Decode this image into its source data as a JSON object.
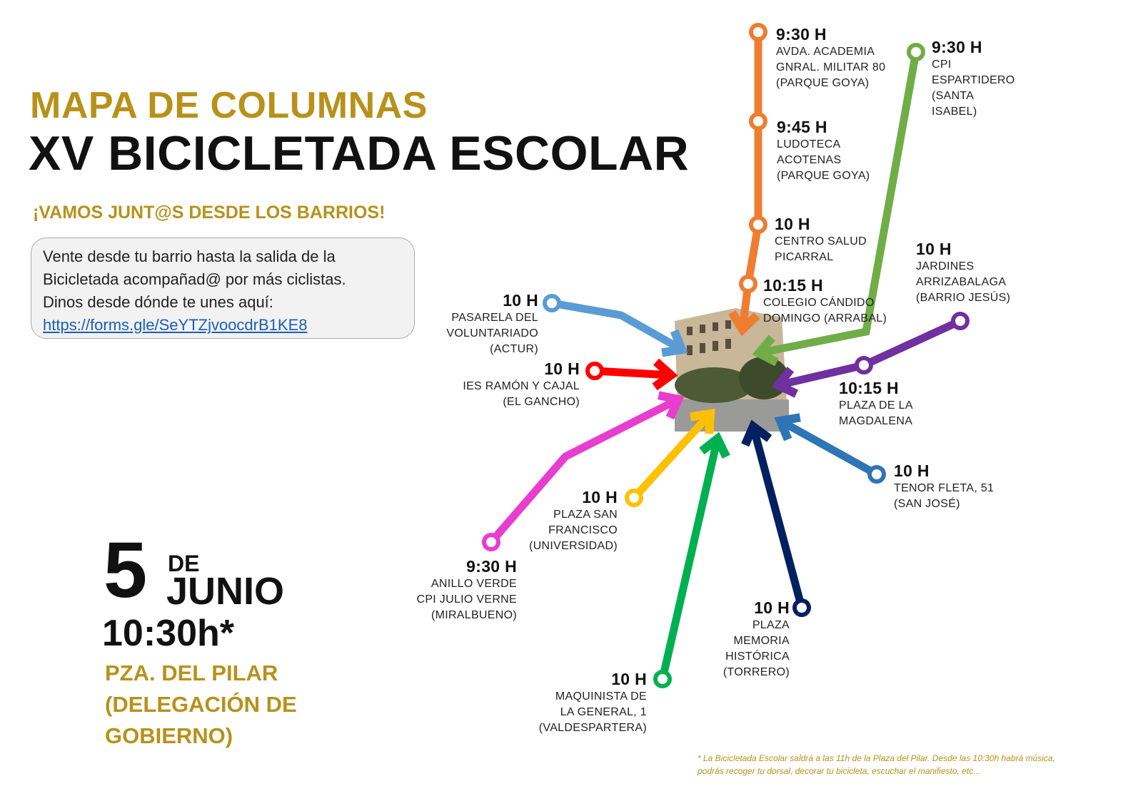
{
  "header": {
    "title_line1": "MAPA DE COLUMNAS",
    "title_line2": "XV BICICLETADA ESCOLAR",
    "subtitle": "¡VAMOS JUNT@S DESDE LOS BARRIOS!"
  },
  "info_box": {
    "line1": "Vente desde tu barrio hasta la salida de la",
    "line2": "Bicicletada acompañad@ por más ciclistas.",
    "line3": "Dinos desde dónde te unes aquí:",
    "link": "https://forms.gle/SeYTZjvoocdrB1KE8"
  },
  "event": {
    "day": "5",
    "de": "DE",
    "month": "JUNIO",
    "time": "10:30h*",
    "place_line1": "PZA. DEL PILAR",
    "place_line2": "(DELEGACIÓN DE",
    "place_line3": "GOBIERNO)"
  },
  "footnote": {
    "line1": "* La Bicicletada Escolar saldrá a las 11h de la Plaza del Pilar. Desde las 10:30h habrá música,",
    "line2": "podrás recoger tu dorsal, decorar tu bicicleta, escuchar el manifiesto, etc..."
  },
  "colors": {
    "gold": "#b8911a",
    "orange": "#ee7d31",
    "light_green": "#70ad47",
    "light_blue": "#5b9bd5",
    "red": "#ff0000",
    "magenta": "#e83dcf",
    "yellow": "#ffc000",
    "green": "#00b050",
    "navy": "#002060",
    "steel_blue": "#2e75b6",
    "purple": "#7030a0"
  },
  "stops": [
    {
      "time": "9:30 H",
      "lines": [
        "AVDA. ACADEMIA",
        "GNRAL. MILITAR 80",
        "(PARQUE GOYA)"
      ]
    },
    {
      "time": "9:45 H",
      "lines": [
        "LUDOTECA",
        "ACOTENAS",
        "(PARQUE GOYA)"
      ]
    },
    {
      "time": "10 H",
      "lines": [
        "CENTRO SALUD",
        "PICARRAL"
      ]
    },
    {
      "time": "10:15 H",
      "lines": [
        "COLEGIO CÁNDIDO",
        "DOMINGO (ARRABAL)"
      ]
    },
    {
      "time": "9:30 H",
      "lines": [
        "CPI",
        "ESPARTIDERO",
        "(SANTA",
        "ISABEL)"
      ]
    },
    {
      "time": "10 H",
      "lines": [
        "JARDINES",
        "ARRIZABALAGA",
        "(BARRIO JESÚS)"
      ]
    },
    {
      "time": "10:15 H",
      "lines": [
        "PLAZA DE LA",
        "MAGDALENA"
      ]
    },
    {
      "time": "10 H",
      "lines": [
        "TENOR FLETA, 51",
        "(SAN JOSÉ)"
      ]
    },
    {
      "time": "10 H",
      "lines": [
        "PLAZA",
        "MEMORIA",
        "HISTÓRICA",
        "(TORRERO)"
      ]
    },
    {
      "time": "10 H",
      "lines": [
        "MAQUINISTA DE",
        "LA GENERAL, 1",
        "(VALDESPARTERA)"
      ]
    },
    {
      "time": "9:30 H",
      "lines": [
        "ANILLO VERDE",
        "CPI JULIO VERNE",
        "(MIRALBUENO)"
      ]
    },
    {
      "time": "10 H",
      "lines": [
        "PLAZA SAN",
        "FRANCISCO",
        "(UNIVERSIDAD)"
      ]
    },
    {
      "time": "10 H",
      "lines": [
        "IES RAMÓN Y CAJAL",
        "(EL GANCHO)"
      ]
    },
    {
      "time": "10 H",
      "lines": [
        "PASARELA DEL",
        "VOLUNTARIADO",
        "(ACTUR)"
      ]
    }
  ]
}
